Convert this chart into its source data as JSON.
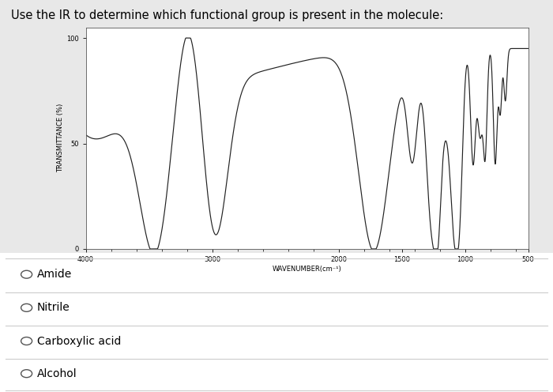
{
  "title": "Use the IR to determine which functional group is present in the molecule:",
  "xlabel": "WAVENUMBER(cm⁻¹)",
  "ylabel": "TRANSMITTANCE (%)",
  "xlim": [
    4000,
    500
  ],
  "ylim": [
    0,
    100
  ],
  "yticks": [
    0,
    50,
    100
  ],
  "xticks": [
    4000,
    3000,
    2000,
    1500,
    1000,
    500
  ],
  "background_color": "#e8e8e8",
  "plot_bg": "#f8f8f8",
  "line_color": "#222222",
  "options": [
    "Amide",
    "Nitrile",
    "Carboxylic acid",
    "Alcohol"
  ],
  "title_fontsize": 10.5,
  "label_fontsize": 6,
  "tick_fontsize": 6,
  "option_fontsize": 10
}
